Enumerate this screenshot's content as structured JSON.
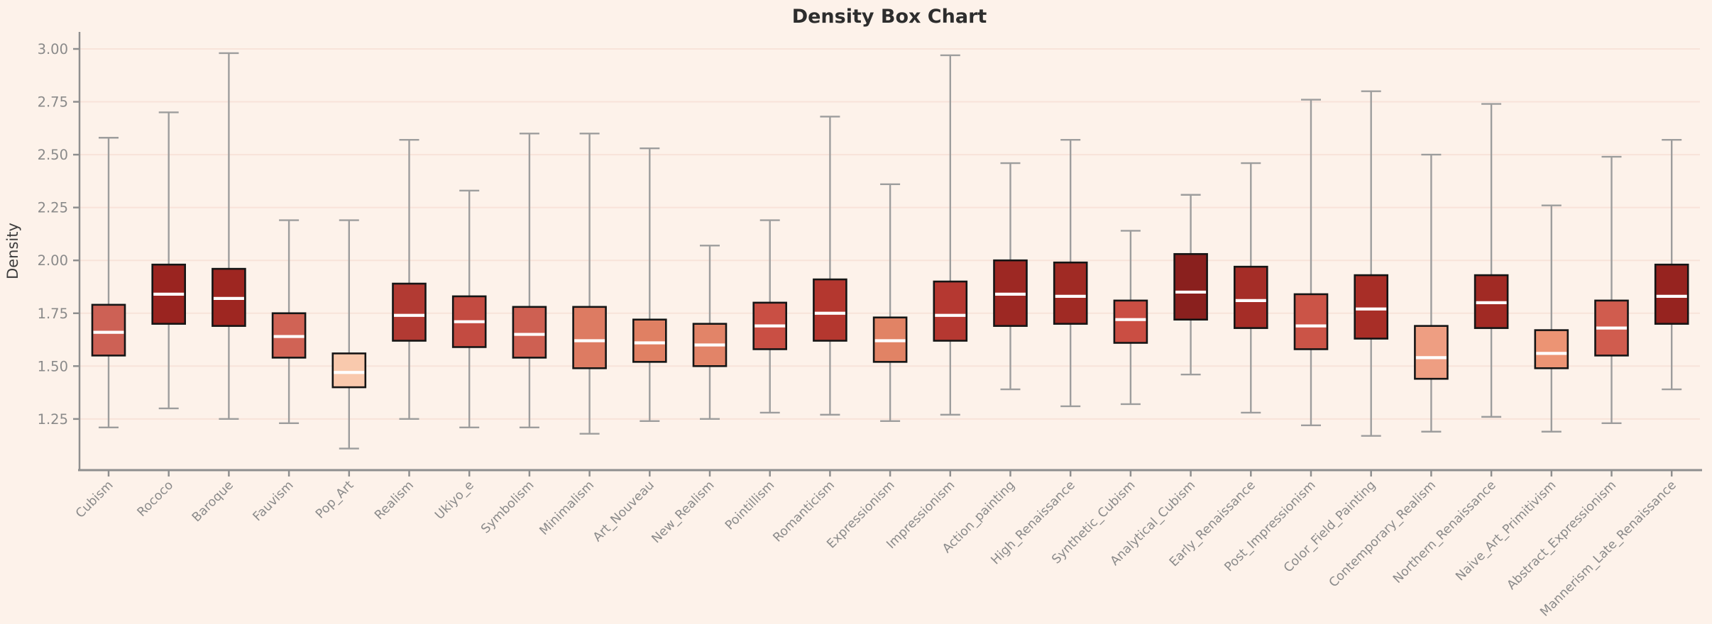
{
  "chart": {
    "background": "#fdf2ea",
    "axis_color": "#8f8f8f",
    "grid_color": "#f8e3d9",
    "tick_label_color": "#8a8a8a",
    "title_color": "#2d2d2d",
    "box_edge_color": "#151515",
    "median_color": "#ffffff",
    "whisker_color": "#9d9d9d"
  },
  "chart_data": {
    "type": "boxplot",
    "title": "Density Box Chart",
    "xlabel": "",
    "ylabel": "Density",
    "ylim": [
      1.0,
      3.08
    ],
    "yticks": [
      1.25,
      1.5,
      1.75,
      2.0,
      2.25,
      2.5,
      2.75,
      3.0
    ],
    "ytick_labels": [
      "1.25",
      "1.50",
      "1.75",
      "2.00",
      "2.25",
      "2.50",
      "2.75",
      "3.00"
    ],
    "grid": "horizontal",
    "legend": "none",
    "categories": [
      "Cubism",
      "Rococo",
      "Baroque",
      "Fauvism",
      "Pop_Art",
      "Realism",
      "Ukiyo_e",
      "Symbolism",
      "Minimalism",
      "Art_Nouveau",
      "New_Realism",
      "Pointillism",
      "Romanticism",
      "Expressionism",
      "Impressionism",
      "Action_painting",
      "High_Renaissance",
      "Synthetic_Cubism",
      "Analytical_Cubism",
      "Early_Renaissance",
      "Post_Impressionism",
      "Color_Field_Painting",
      "Contemporary_Realism",
      "Northern_Renaissance",
      "Naive_Art_Primitivism",
      "Abstract_Expressionism",
      "Mannerism_Late_Renaissance"
    ],
    "series": [
      {
        "name": "Cubism",
        "whisker_low": 1.21,
        "q1": 1.55,
        "median": 1.66,
        "q3": 1.79,
        "whisker_high": 2.58,
        "color": "#cd6155"
      },
      {
        "name": "Rococo",
        "whisker_low": 1.3,
        "q1": 1.7,
        "median": 1.84,
        "q3": 1.98,
        "whisker_high": 2.7,
        "color": "#9a2420"
      },
      {
        "name": "Baroque",
        "whisker_low": 1.25,
        "q1": 1.69,
        "median": 1.82,
        "q3": 1.96,
        "whisker_high": 2.98,
        "color": "#9e2621"
      },
      {
        "name": "Fauvism",
        "whisker_low": 1.23,
        "q1": 1.54,
        "median": 1.64,
        "q3": 1.75,
        "whisker_high": 2.19,
        "color": "#d06355"
      },
      {
        "name": "Pop_Art",
        "whisker_low": 1.11,
        "q1": 1.4,
        "median": 1.47,
        "q3": 1.56,
        "whisker_high": 2.19,
        "color": "#f9c9ad"
      },
      {
        "name": "Realism",
        "whisker_low": 1.25,
        "q1": 1.62,
        "median": 1.74,
        "q3": 1.89,
        "whisker_high": 2.57,
        "color": "#b23a33"
      },
      {
        "name": "Ukiyo_e",
        "whisker_low": 1.21,
        "q1": 1.59,
        "median": 1.71,
        "q3": 1.83,
        "whisker_high": 2.33,
        "color": "#c34b41"
      },
      {
        "name": "Symbolism",
        "whisker_low": 1.21,
        "q1": 1.54,
        "median": 1.65,
        "q3": 1.78,
        "whisker_high": 2.6,
        "color": "#ce6052"
      },
      {
        "name": "Minimalism",
        "whisker_low": 1.18,
        "q1": 1.49,
        "median": 1.62,
        "q3": 1.78,
        "whisker_high": 2.6,
        "color": "#dd7b62"
      },
      {
        "name": "Art_Nouveau",
        "whisker_low": 1.24,
        "q1": 1.52,
        "median": 1.61,
        "q3": 1.72,
        "whisker_high": 2.53,
        "color": "#e08063"
      },
      {
        "name": "New_Realism",
        "whisker_low": 1.25,
        "q1": 1.5,
        "median": 1.6,
        "q3": 1.7,
        "whisker_high": 2.07,
        "color": "#e28468"
      },
      {
        "name": "Pointillism",
        "whisker_low": 1.28,
        "q1": 1.58,
        "median": 1.69,
        "q3": 1.8,
        "whisker_high": 2.19,
        "color": "#c94f44"
      },
      {
        "name": "Romanticism",
        "whisker_low": 1.27,
        "q1": 1.62,
        "median": 1.75,
        "q3": 1.91,
        "whisker_high": 2.68,
        "color": "#b4372f"
      },
      {
        "name": "Expressionism",
        "whisker_low": 1.24,
        "q1": 1.52,
        "median": 1.62,
        "q3": 1.73,
        "whisker_high": 2.36,
        "color": "#e18365"
      },
      {
        "name": "Impressionism",
        "whisker_low": 1.27,
        "q1": 1.62,
        "median": 1.74,
        "q3": 1.9,
        "whisker_high": 2.97,
        "color": "#b53831"
      },
      {
        "name": "Action_painting",
        "whisker_low": 1.39,
        "q1": 1.69,
        "median": 1.84,
        "q3": 2.0,
        "whisker_high": 2.46,
        "color": "#9d2823"
      },
      {
        "name": "High_Renaissance",
        "whisker_low": 1.31,
        "q1": 1.7,
        "median": 1.83,
        "q3": 1.99,
        "whisker_high": 2.57,
        "color": "#a02a24"
      },
      {
        "name": "Synthetic_Cubism",
        "whisker_low": 1.32,
        "q1": 1.61,
        "median": 1.72,
        "q3": 1.81,
        "whisker_high": 2.14,
        "color": "#ca4e43"
      },
      {
        "name": "Analytical_Cubism",
        "whisker_low": 1.46,
        "q1": 1.72,
        "median": 1.85,
        "q3": 2.03,
        "whisker_high": 2.31,
        "color": "#8a201e"
      },
      {
        "name": "Early_Renaissance",
        "whisker_low": 1.28,
        "q1": 1.68,
        "median": 1.81,
        "q3": 1.97,
        "whisker_high": 2.46,
        "color": "#a52d27"
      },
      {
        "name": "Post_Impressionism",
        "whisker_low": 1.22,
        "q1": 1.58,
        "median": 1.69,
        "q3": 1.84,
        "whisker_high": 2.76,
        "color": "#cb5447"
      },
      {
        "name": "Color_Field_Painting",
        "whisker_low": 1.17,
        "q1": 1.63,
        "median": 1.77,
        "q3": 1.93,
        "whisker_high": 2.8,
        "color": "#a82e27"
      },
      {
        "name": "Contemporary_Realism",
        "whisker_low": 1.19,
        "q1": 1.44,
        "median": 1.54,
        "q3": 1.69,
        "whisker_high": 2.5,
        "color": "#ee9e82"
      },
      {
        "name": "Northern_Renaissance",
        "whisker_low": 1.26,
        "q1": 1.68,
        "median": 1.8,
        "q3": 1.93,
        "whisker_high": 2.74,
        "color": "#a12a24"
      },
      {
        "name": "Naive_Art_Primitivism",
        "whisker_low": 1.19,
        "q1": 1.49,
        "median": 1.56,
        "q3": 1.67,
        "whisker_high": 2.26,
        "color": "#ec9474"
      },
      {
        "name": "Abstract_Expressionism",
        "whisker_low": 1.23,
        "q1": 1.55,
        "median": 1.68,
        "q3": 1.81,
        "whisker_high": 2.49,
        "color": "#d05c4e"
      },
      {
        "name": "Mannerism_Late_Renaissance",
        "whisker_low": 1.39,
        "q1": 1.7,
        "median": 1.83,
        "q3": 1.98,
        "whisker_high": 2.57,
        "color": "#96231f"
      }
    ]
  }
}
